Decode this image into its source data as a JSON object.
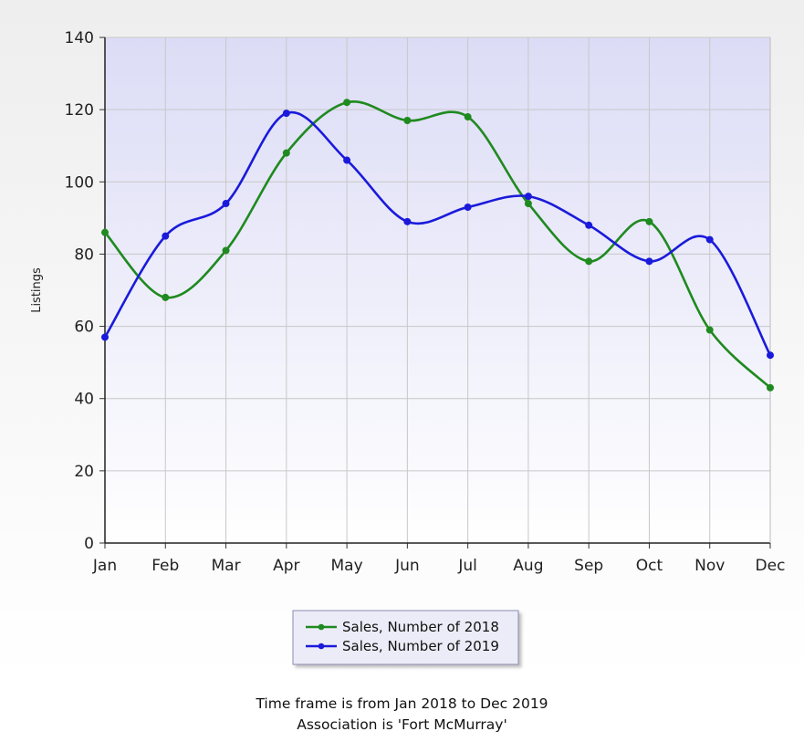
{
  "chart_data": {
    "type": "line",
    "title": "",
    "xlabel": "",
    "ylabel": "Listings",
    "ylim": [
      0,
      140
    ],
    "yticks": [
      0,
      20,
      40,
      60,
      80,
      100,
      120,
      140
    ],
    "categories": [
      "Jan",
      "Feb",
      "Mar",
      "Apr",
      "May",
      "Jun",
      "Jul",
      "Aug",
      "Sep",
      "Oct",
      "Nov",
      "Dec"
    ],
    "grid": true,
    "smooth": true,
    "legend_position": "bottom-center",
    "series": [
      {
        "name": "Sales, Number of 2018",
        "color": "#1f8a1f",
        "values": [
          86,
          68,
          81,
          108,
          122,
          117,
          118,
          94,
          78,
          89,
          59,
          43
        ]
      },
      {
        "name": "Sales, Number of 2019",
        "color": "#1a1adb",
        "values": [
          57,
          85,
          94,
          119,
          106,
          89,
          93,
          96,
          88,
          78,
          84,
          52
        ]
      }
    ]
  },
  "footer": {
    "line1": "Time frame is from Jan 2018 to Dec 2019",
    "line2": "Association is 'Fort McMurray'"
  },
  "colors": {
    "plot_gradient_top": "#dcdcf6",
    "plot_gradient_bottom": "#ffffff",
    "grid": "#c8c8c8",
    "legend_bg": "#ececf8"
  }
}
